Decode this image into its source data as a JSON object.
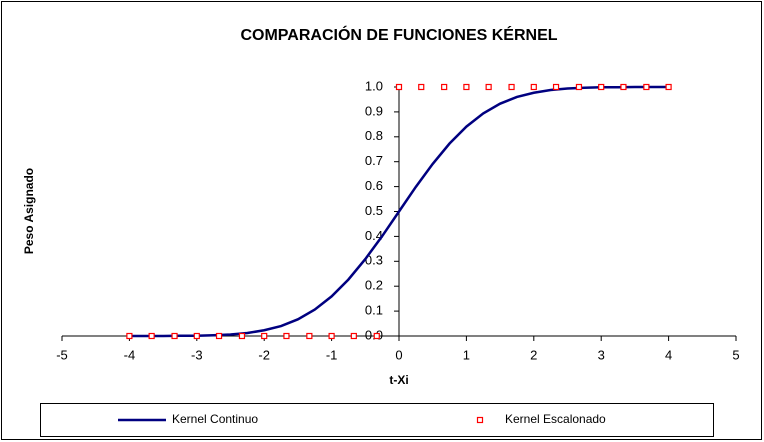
{
  "chart_data": {
    "type": "line",
    "title": "COMPARACIÓN DE FUNCIONES KÉRNEL",
    "x_label": "t-Xi",
    "y_label": "Peso Asignado",
    "xlim": [
      -5,
      5
    ],
    "xticks": [
      -5,
      -4,
      -3,
      -2,
      -1,
      0,
      1,
      2,
      3,
      4,
      5
    ],
    "ylim": [
      0,
      1
    ],
    "yticks": [
      {
        "value": 0,
        "label": "0.0"
      },
      0.1,
      0.2,
      0.3,
      0.4,
      0.5,
      0.6,
      0.7,
      0.8,
      0.9,
      {
        "value": 1,
        "label": "1.0"
      }
    ],
    "legend": "bottom",
    "series": [
      {
        "name": "Kernel Continuo",
        "color": "#000080",
        "style": "line",
        "x": [
          -4,
          -3.75,
          -3.5,
          -3.25,
          -3,
          -2.75,
          -2.5,
          -2.25,
          -2,
          -1.75,
          -1.5,
          -1.25,
          -1,
          -0.75,
          -0.5,
          -0.25,
          0,
          0.25,
          0.5,
          0.75,
          1,
          1.25,
          1.5,
          1.75,
          2,
          2.25,
          2.5,
          2.75,
          3,
          3.25,
          3.5,
          3.75,
          4
        ],
        "values": [
          0,
          0,
          0,
          0.001,
          0.001,
          0.003,
          0.006,
          0.012,
          0.023,
          0.04,
          0.067,
          0.106,
          0.159,
          0.227,
          0.309,
          0.401,
          0.5,
          0.599,
          0.691,
          0.773,
          0.841,
          0.894,
          0.933,
          0.96,
          0.977,
          0.988,
          0.994,
          0.997,
          0.999,
          0.999,
          1,
          1,
          1
        ]
      },
      {
        "name": "Kernel Escalonado",
        "color": "#ff0000",
        "style": "markers",
        "x": [
          -4,
          -3.67,
          -3.33,
          -3,
          -2.67,
          -2.33,
          -2,
          -1.67,
          -1.33,
          -1,
          -0.67,
          -0.33,
          0,
          0.33,
          0.67,
          1,
          1.33,
          1.67,
          2,
          2.33,
          2.67,
          3,
          3.33,
          3.67,
          4
        ],
        "values": [
          0,
          0,
          0,
          0,
          0,
          0,
          0,
          0,
          0,
          0,
          0,
          0,
          1,
          1,
          1,
          1,
          1,
          1,
          1,
          1,
          1,
          1,
          1,
          1,
          1
        ]
      }
    ]
  }
}
